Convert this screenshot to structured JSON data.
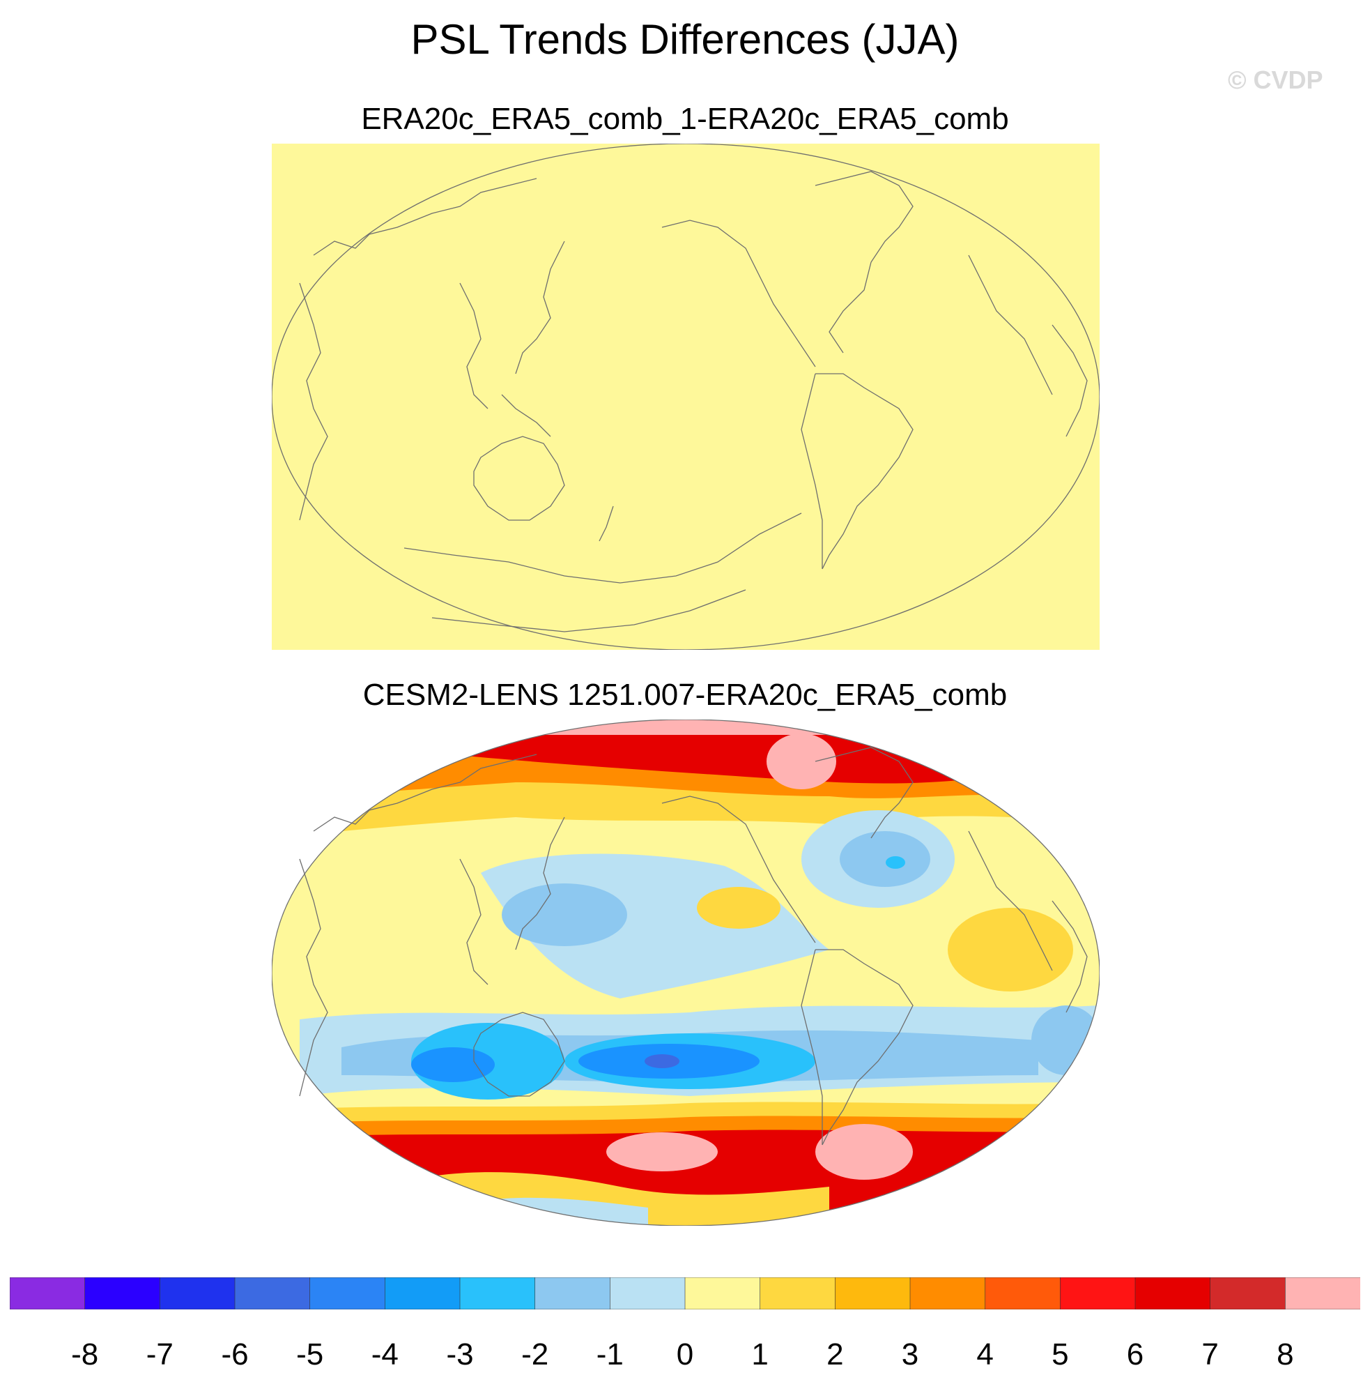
{
  "figure": {
    "title": "PSL Trends Differences (JJA)",
    "watermark": "© CVDP"
  },
  "panels": [
    {
      "subtitle": "ERA20c_ERA5_comb_1-ERA20c_ERA5_comb",
      "uniform_value": 0.5,
      "uniform_color": "#fef89a"
    },
    {
      "subtitle": "CESM2-LENS 1251.007-ERA20c_ERA5_comb",
      "background_color": "#fef89a",
      "regions": [
        {
          "name": "arctic-high",
          "value": 8,
          "color": "#ffb3b3"
        },
        {
          "name": "southern-ring",
          "value": 6,
          "color": "#e50000"
        },
        {
          "name": "antarctic-cap",
          "value": 8,
          "color": "#ffb3b3"
        },
        {
          "name": "south-pacific-low",
          "value": -4,
          "color": "#1a93ff"
        },
        {
          "name": "north-pacific-low",
          "value": -2,
          "color": "#8dc8f0"
        },
        {
          "name": "north-atlantic-low",
          "value": -2,
          "color": "#8dc8f0"
        },
        {
          "name": "subtropical-high",
          "value": 2,
          "color": "#fed840"
        }
      ]
    }
  ],
  "colorbar": {
    "colors": [
      "#8a2be2",
      "#2b00ff",
      "#1f32ee",
      "#3c6ae2",
      "#2b84f5",
      "#129cf7",
      "#29c1fb",
      "#8dc8f0",
      "#bae1f3",
      "#fef89a",
      "#fed840",
      "#feb90d",
      "#ff8c00",
      "#ff5a0a",
      "#ff1414",
      "#e50000",
      "#d32a2a",
      "#ffb3b3"
    ],
    "ticks": [
      "-8",
      "-7",
      "-6",
      "-5",
      "-4",
      "-3",
      "-2",
      "-1",
      "0",
      "1",
      "2",
      "3",
      "4",
      "5",
      "6",
      "7",
      "8"
    ]
  }
}
